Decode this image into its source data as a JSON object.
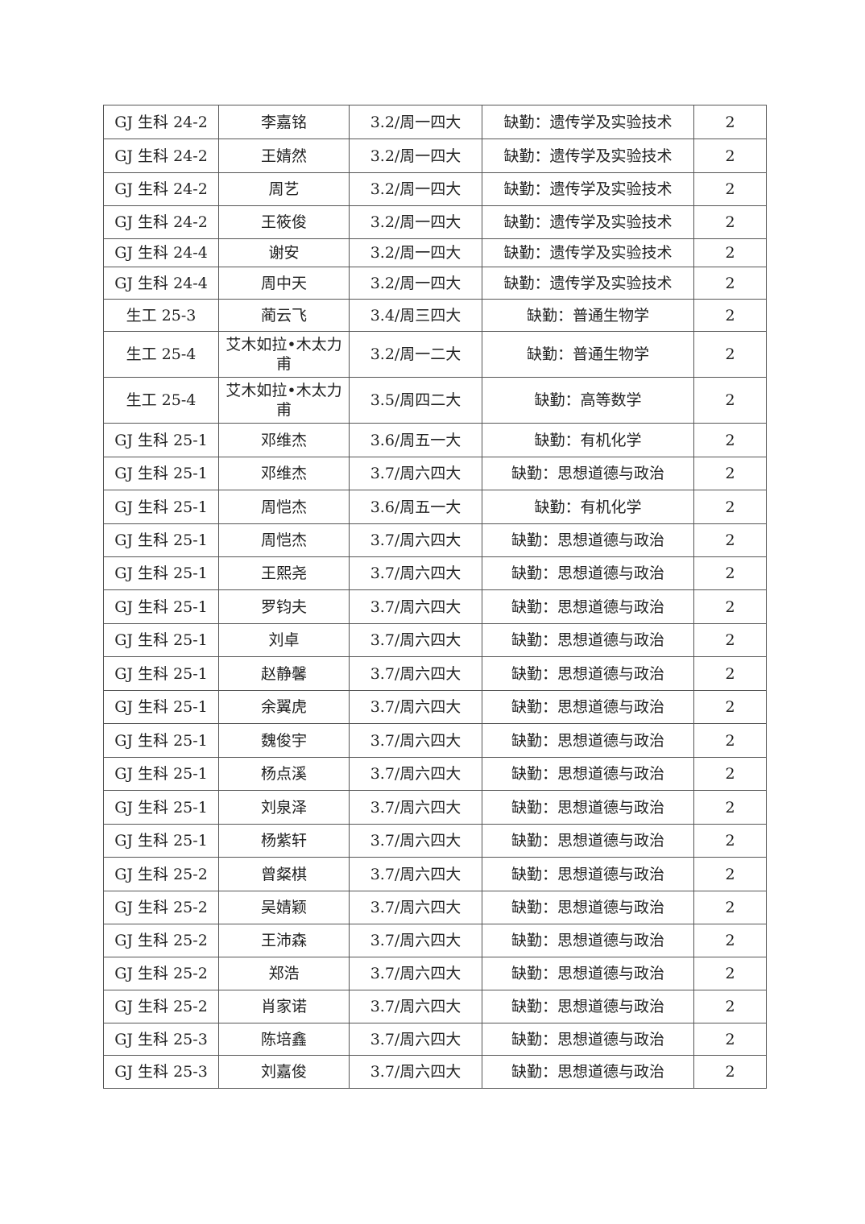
{
  "table": {
    "rows": [
      [
        "GJ 生科 24-2",
        "李嘉铭",
        "3.2/周一四大",
        "缺勤：遗传学及实验技术",
        "2"
      ],
      [
        "GJ 生科 24-2",
        "王婧然",
        "3.2/周一四大",
        "缺勤：遗传学及实验技术",
        "2"
      ],
      [
        "GJ 生科 24-2",
        "周艺",
        "3.2/周一四大",
        "缺勤：遗传学及实验技术",
        "2"
      ],
      [
        "GJ 生科 24-2",
        "王筱俊",
        "3.2/周一四大",
        "缺勤：遗传学及实验技术",
        "2"
      ],
      [
        "GJ 生科 24-4",
        "谢安",
        "3.2/周一四大",
        "缺勤：遗传学及实验技术",
        "2"
      ],
      [
        "GJ 生科 24-4",
        "周中天",
        "3.2/周一四大",
        "缺勤：遗传学及实验技术",
        "2"
      ],
      [
        "生工 25-3",
        "蔺云飞",
        "3.4/周三四大",
        "缺勤：普通生物学",
        "2"
      ],
      [
        "生工 25-4",
        "艾木如拉•木太力甫",
        "3.2/周一二大",
        "缺勤：普通生物学",
        "2"
      ],
      [
        "生工 25-4",
        "艾木如拉•木太力甫",
        "3.5/周四二大",
        "缺勤：高等数学",
        "2"
      ],
      [
        "GJ 生科 25-1",
        "邓维杰",
        "3.6/周五一大",
        "缺勤：有机化学",
        "2"
      ],
      [
        "GJ 生科 25-1",
        "邓维杰",
        "3.7/周六四大",
        "缺勤：思想道德与政治",
        "2"
      ],
      [
        "GJ 生科 25-1",
        "周恺杰",
        "3.6/周五一大",
        "缺勤：有机化学",
        "2"
      ],
      [
        "GJ 生科 25-1",
        "周恺杰",
        "3.7/周六四大",
        "缺勤：思想道德与政治",
        "2"
      ],
      [
        "GJ 生科 25-1",
        "王熙尧",
        "3.7/周六四大",
        "缺勤：思想道德与政治",
        "2"
      ],
      [
        "GJ 生科 25-1",
        "罗钧夫",
        "3.7/周六四大",
        "缺勤：思想道德与政治",
        "2"
      ],
      [
        "GJ 生科 25-1",
        "刘卓",
        "3.7/周六四大",
        "缺勤：思想道德与政治",
        "2"
      ],
      [
        "GJ 生科 25-1",
        "赵静馨",
        "3.7/周六四大",
        "缺勤：思想道德与政治",
        "2"
      ],
      [
        "GJ 生科 25-1",
        "余翼虎",
        "3.7/周六四大",
        "缺勤：思想道德与政治",
        "2"
      ],
      [
        "GJ 生科 25-1",
        "魏俊宇",
        "3.7/周六四大",
        "缺勤：思想道德与政治",
        "2"
      ],
      [
        "GJ 生科 25-1",
        "杨点溪",
        "3.7/周六四大",
        "缺勤：思想道德与政治",
        "2"
      ],
      [
        "GJ 生科 25-1",
        "刘泉泽",
        "3.7/周六四大",
        "缺勤：思想道德与政治",
        "2"
      ],
      [
        "GJ 生科 25-1",
        "杨紫轩",
        "3.7/周六四大",
        "缺勤：思想道德与政治",
        "2"
      ],
      [
        "GJ 生科 25-2",
        "曾粲棋",
        "3.7/周六四大",
        "缺勤：思想道德与政治",
        "2"
      ],
      [
        "GJ 生科 25-2",
        "吴婧颖",
        "3.7/周六四大",
        "缺勤：思想道德与政治",
        "2"
      ],
      [
        "GJ 生科 25-2",
        "王沛森",
        "3.7/周六四大",
        "缺勤：思想道德与政治",
        "2"
      ],
      [
        "GJ 生科 25-2",
        "郑浩",
        "3.7/周六四大",
        "缺勤：思想道德与政治",
        "2"
      ],
      [
        "GJ 生科 25-2",
        "肖家诺",
        "3.7/周六四大",
        "缺勤：思想道德与政治",
        "2"
      ],
      [
        "GJ 生科 25-3",
        "陈培鑫",
        "3.7/周六四大",
        "缺勤：思想道德与政治",
        "2"
      ],
      [
        "GJ 生科 25-3",
        "刘嘉俊",
        "3.7/周六四大",
        "缺勤：思想道德与政治",
        "2"
      ]
    ]
  }
}
